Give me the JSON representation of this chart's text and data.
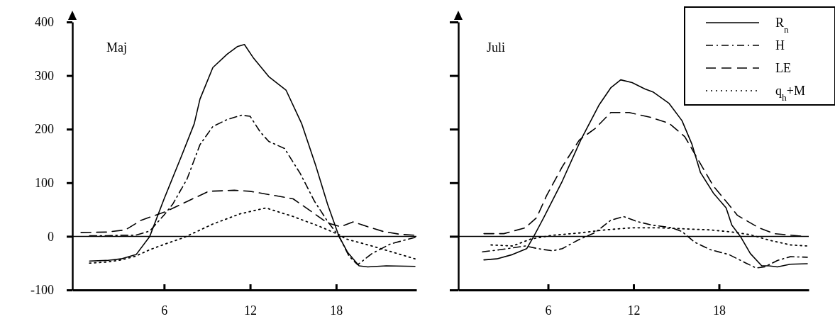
{
  "chart_data": [
    {
      "type": "line",
      "title": "Maj",
      "xlim": [
        -0.4,
        23.6
      ],
      "xticks": [
        6,
        12,
        18
      ],
      "ylim": [
        -100,
        400
      ],
      "yticks": [
        -100,
        0,
        100,
        200,
        300,
        400
      ],
      "ref_lines": [
        {
          "axis": "y",
          "value": 0,
          "color": "#000000",
          "line_style": "solid"
        }
      ],
      "series": [
        {
          "color": "#000000",
          "line_style": "solid",
          "x": [
            0.8,
            2,
            3,
            4.05,
            5,
            6,
            7.2,
            8.1,
            8.5,
            9.4,
            10.4,
            11.1,
            11.6,
            12.2,
            13.3,
            14.5,
            15.6,
            16.6,
            17.4,
            18.2,
            18.8,
            19.6,
            20.2,
            21.5,
            23.5
          ],
          "values": [
            -46,
            -45,
            -42,
            -34,
            0,
            70,
            149,
            210,
            256,
            315,
            340,
            354,
            358,
            334,
            298,
            273,
            210,
            130,
            60,
            0,
            -30,
            -55,
            -57,
            -55,
            -56
          ]
        },
        {
          "color": "#000000",
          "line_style": "dashdot",
          "x": [
            0.8,
            2,
            3,
            4,
            5,
            6,
            6.6,
            7.6,
            8.5,
            9.4,
            10.4,
            11.4,
            12,
            12.7,
            13.3,
            14.4,
            15.5,
            16.5,
            17.4,
            18.2,
            18.9,
            19.5,
            20.5,
            21.8,
            23.5
          ],
          "values": [
            1,
            1,
            2,
            2,
            10,
            40,
            60,
            107,
            171,
            205,
            218,
            226,
            224,
            195,
            177,
            164,
            117,
            65,
            28,
            0,
            -37,
            -53,
            -32,
            -14,
            -2
          ]
        },
        {
          "color": "#000000",
          "line_style": "dashed",
          "x": [
            0.2,
            2,
            3.3,
            4.4,
            6.1,
            7.6,
            9.1,
            10.9,
            12,
            13.1,
            15,
            16.5,
            17.4,
            18.3,
            19.2,
            20.2,
            21.3,
            22.4,
            23.5
          ],
          "values": [
            7,
            8,
            12,
            30,
            46,
            65,
            84,
            86,
            84,
            79,
            70,
            42,
            25,
            18,
            27,
            18,
            9,
            4,
            2
          ]
        },
        {
          "color": "#000000",
          "line_style": "dotted",
          "x": [
            0.8,
            2,
            3,
            4,
            5,
            6,
            7.4,
            9.4,
            11.3,
            13.1,
            15,
            16.8,
            18.2,
            18.7,
            20.5,
            23.5
          ],
          "values": [
            -50,
            -48,
            -44,
            -37,
            -25,
            -15,
            -2,
            23,
            42,
            53,
            37,
            19,
            3,
            -5,
            -18,
            -42
          ]
        }
      ]
    },
    {
      "type": "line",
      "title": "Juli",
      "xlim": [
        -0.3,
        24.3
      ],
      "xticks": [
        6,
        12,
        18
      ],
      "ylim": [
        -100,
        400
      ],
      "yticks": [
        -100,
        0,
        100,
        200,
        300,
        400
      ],
      "tick_labels": "x",
      "legend": "top right",
      "ref_lines": [
        {
          "axis": "y",
          "value": 0,
          "color": "#000000",
          "line_style": "solid"
        }
      ],
      "series": [
        {
          "name": "R$_{n}$",
          "color": "#000000",
          "line_style": "solid",
          "x": [
            1.5,
            2.4,
            3.5,
            4.5,
            5,
            5.7,
            7,
            8.3,
            9.6,
            10.4,
            11.1,
            11.9,
            12.8,
            13.4,
            14.5,
            15.4,
            16.1,
            16.7,
            17.6,
            18.5,
            18.9,
            19.5,
            20.2,
            21,
            21.5,
            22.1,
            23,
            24.2
          ],
          "values": [
            -44,
            -42,
            -34,
            -23,
            0,
            35,
            103,
            180,
            246,
            277,
            292,
            287,
            275,
            269,
            248,
            216,
            172,
            119,
            81,
            53,
            21,
            0,
            -32,
            -55,
            -55,
            -57,
            -52,
            -51
          ]
        },
        {
          "name": "H",
          "color": "#000000",
          "line_style": "dashdot",
          "x": [
            1.4,
            2.6,
            4.4,
            5.3,
            6.3,
            7,
            8.1,
            9.3,
            10.4,
            11.3,
            12.2,
            13.3,
            14.7,
            15.4,
            16.3,
            17.4,
            18.7,
            19.9,
            20.6,
            21.2,
            22.1,
            23,
            24.2
          ],
          "values": [
            -29,
            -25,
            -18,
            -23,
            -27,
            -23,
            -7,
            7,
            30,
            37,
            28,
            21,
            16,
            9,
            -11,
            -25,
            -34,
            -50,
            -59,
            -57,
            -45,
            -38,
            -39
          ]
        },
        {
          "name": "LE",
          "color": "#000000",
          "line_style": "dashed",
          "x": [
            1.5,
            2.9,
            4.4,
            5.2,
            5.9,
            7,
            8.2,
            9.3,
            10.4,
            11.7,
            13.2,
            14.5,
            15.6,
            16.6,
            17.6,
            18.6,
            19.3,
            20.8,
            21.9,
            23.9
          ],
          "values": [
            5,
            5,
            16,
            35,
            76,
            130,
            180,
            201,
            231,
            231,
            222,
            211,
            186,
            140,
            94,
            62,
            39,
            16,
            5,
            0
          ]
        },
        {
          "name": "q$_{h}$+M",
          "color": "#000000",
          "line_style": "dotted",
          "x": [
            2,
            3.5,
            4.8,
            6.3,
            8.1,
            10,
            11.9,
            13.7,
            15.6,
            17.4,
            18.9,
            20.2,
            21.5,
            23,
            24.2
          ],
          "values": [
            -16,
            -18,
            -5,
            2,
            6,
            12,
            16,
            16,
            14,
            12,
            8,
            3,
            -7,
            -16,
            -18
          ]
        }
      ]
    }
  ]
}
